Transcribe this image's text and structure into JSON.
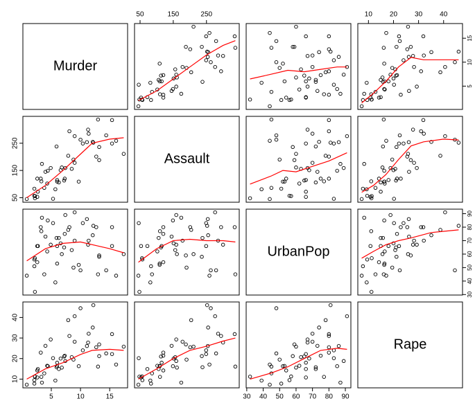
{
  "chart_data": {
    "type": "pairs",
    "point_color": "#000000",
    "smooth_color": "#ff0000",
    "variables": [
      {
        "name": "Murder",
        "lim": [
          0.136,
          18.064
        ],
        "ticks": [
          5,
          10,
          15
        ],
        "values": [
          13.2,
          10.0,
          8.1,
          8.8,
          9.0,
          7.9,
          3.3,
          5.9,
          15.4,
          17.4,
          5.3,
          2.6,
          10.4,
          7.2,
          2.2,
          6.0,
          9.7,
          15.4,
          2.1,
          11.3,
          4.4,
          12.1,
          2.7,
          16.1,
          9.0,
          6.0,
          4.3,
          12.2,
          2.1,
          7.4,
          11.4,
          11.1,
          13.0,
          0.8,
          7.3,
          6.6,
          4.9,
          6.3,
          3.4,
          14.4,
          3.8,
          13.2,
          12.7,
          3.2,
          2.2,
          8.5,
          4.0,
          5.7,
          2.6,
          6.8
        ],
        "smooth": [
          null,
          {
            "x": [
              45,
              100,
              150,
              200,
              250,
              300,
              337
            ],
            "y": [
              2,
              4,
              6.5,
              9,
              11.5,
              13.5,
              14.5
            ]
          },
          {
            "x": [
              32,
              45,
              55,
              65,
              75,
              85,
              91
            ],
            "y": [
              6.5,
              7.5,
              8.3,
              8,
              8.5,
              9,
              9
            ]
          },
          {
            "x": [
              7.3,
              12,
              17,
              22,
              27,
              32,
              40,
              46
            ],
            "y": [
              1.5,
              3.5,
              6,
              9,
              11,
              10.5,
              10.5,
              10.5
            ]
          }
        ]
      },
      {
        "name": "Assault",
        "lim": [
          33.32,
          348.68
        ],
        "ticks": [
          50,
          150,
          250
        ],
        "values": [
          236,
          263,
          294,
          190,
          276,
          204,
          110,
          238,
          335,
          211,
          46,
          120,
          249,
          113,
          56,
          115,
          109,
          249,
          83,
          300,
          149,
          255,
          72,
          259,
          178,
          109,
          102,
          252,
          57,
          159,
          285,
          254,
          337,
          45,
          120,
          151,
          159,
          106,
          174,
          279,
          86,
          188,
          201,
          120,
          48,
          156,
          145,
          81,
          53,
          161
        ],
        "smooth": [
          {
            "x": [
              0.8,
              4,
              7,
              10,
              12,
              15,
              17.4
            ],
            "y": [
              50,
              95,
              150,
              210,
              250,
              265,
              270
            ]
          },
          null,
          {
            "x": [
              32,
              45,
              52,
              60,
              70,
              80,
              91
            ],
            "y": [
              100,
              130,
              150,
              145,
              165,
              185,
              215
            ]
          },
          {
            "x": [
              7.3,
              12,
              17,
              22,
              27,
              32,
              40,
              46
            ],
            "y": [
              70,
              95,
              135,
              190,
              240,
              255,
              265,
              262
            ]
          }
        ]
      },
      {
        "name": "UrbanPop",
        "lim": [
          29.64,
          93.36
        ],
        "ticks": [
          30,
          40,
          50,
          60,
          70,
          80,
          90
        ],
        "values": [
          58,
          48,
          80,
          50,
          91,
          78,
          77,
          72,
          80,
          60,
          83,
          54,
          83,
          65,
          57,
          66,
          52,
          66,
          51,
          67,
          85,
          74,
          66,
          44,
          70,
          53,
          62,
          81,
          56,
          89,
          70,
          86,
          45,
          44,
          75,
          68,
          67,
          72,
          87,
          48,
          45,
          59,
          80,
          80,
          32,
          63,
          73,
          39,
          66,
          60
        ],
        "smooth": [
          {
            "x": [
              0.8,
              4,
              7,
              10,
              13,
              15,
              17.4
            ],
            "y": [
              55,
              64,
              68,
              69,
              66,
              64,
              61
            ]
          },
          {
            "x": [
              45,
              100,
              150,
              200,
              250,
              300,
              337
            ],
            "y": [
              54,
              64,
              70,
              71,
              70,
              70,
              69
            ]
          },
          null,
          {
            "x": [
              7.3,
              12,
              17,
              22,
              27,
              35,
              46
            ],
            "y": [
              57,
              62,
              67,
              70,
              72,
              76,
              78
            ]
          }
        ]
      },
      {
        "name": "Rape",
        "lim": [
          5.752,
          47.548
        ],
        "ticks": [
          10,
          20,
          30,
          40
        ],
        "values": [
          21.2,
          44.5,
          31.0,
          19.5,
          40.6,
          38.7,
          11.1,
          15.8,
          31.9,
          25.8,
          20.2,
          14.2,
          24.0,
          21.0,
          11.3,
          18.0,
          16.3,
          22.2,
          7.8,
          27.8,
          16.3,
          35.1,
          14.9,
          17.1,
          28.2,
          16.4,
          16.5,
          46.0,
          9.5,
          18.8,
          32.1,
          26.1,
          16.1,
          7.3,
          21.4,
          20.0,
          29.3,
          14.9,
          8.3,
          22.5,
          12.8,
          26.9,
          25.5,
          22.9,
          11.2,
          20.7,
          26.2,
          9.3,
          10.8,
          15.6
        ],
        "smooth": [
          {
            "x": [
              0.8,
              4,
              7,
              10,
              12,
              15,
              17.4
            ],
            "y": [
              10,
              15,
              18,
              22,
              24,
              24.5,
              24
            ]
          },
          {
            "x": [
              45,
              100,
              150,
              200,
              250,
              300,
              337
            ],
            "y": [
              10,
              15,
              20,
              24,
              26,
              28.5,
              30
            ]
          },
          {
            "x": [
              32,
              45,
              55,
              65,
              75,
              85,
              91
            ],
            "y": [
              10,
              13,
              16,
              20,
              24,
              25,
              24.5
            ]
          },
          null
        ]
      }
    ]
  }
}
